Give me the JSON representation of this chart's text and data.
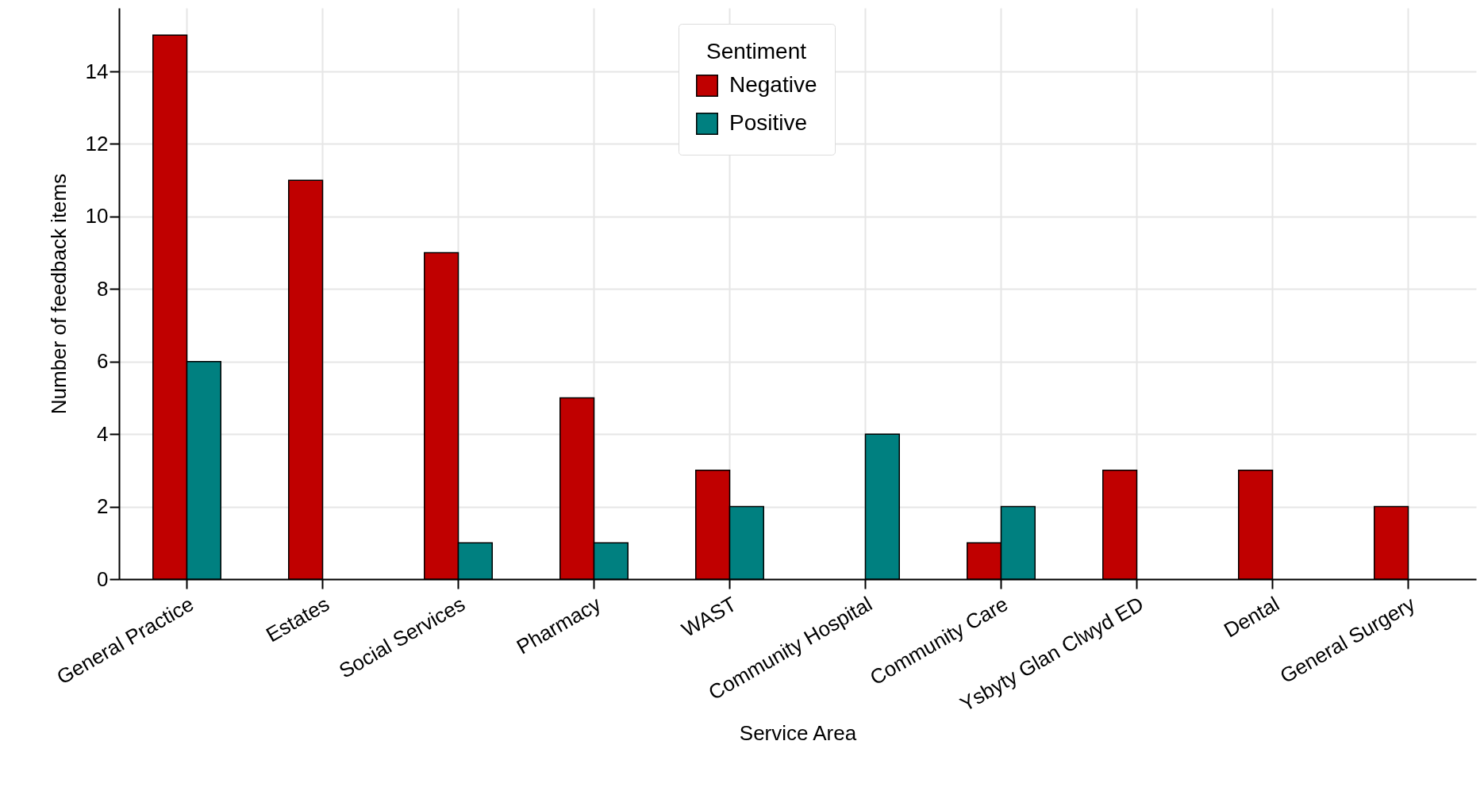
{
  "chart_data": {
    "type": "bar",
    "xlabel": "Service Area",
    "ylabel": "Number of feedback items",
    "legend_title": "Sentiment",
    "categories": [
      "General Practice",
      "Estates",
      "Social Services",
      "Pharmacy",
      "WAST",
      "Community Hospital",
      "Community Care",
      "Ysbyty Glan Clwyd ED",
      "Dental",
      "General Surgery"
    ],
    "series": [
      {
        "name": "Negative",
        "color": "#c00000",
        "values": [
          15,
          11,
          9,
          5,
          3,
          0,
          1,
          3,
          3,
          2
        ]
      },
      {
        "name": "Positive",
        "color": "#008080",
        "values": [
          6,
          0,
          1,
          1,
          2,
          4,
          2,
          0,
          0,
          0
        ]
      }
    ],
    "ylim": [
      0,
      15.75
    ],
    "yticks": [
      0,
      2,
      4,
      6,
      8,
      10,
      12,
      14
    ],
    "grid": true,
    "legend": "top"
  }
}
